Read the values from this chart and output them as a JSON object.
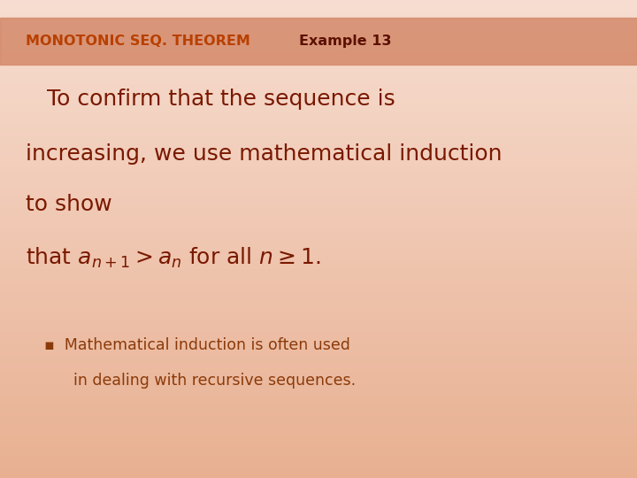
{
  "bg_color_top": "#f7ddd0",
  "bg_color_mid": "#f0c4a8",
  "bg_color_bot": "#e8b090",
  "header_bar_color": "#d4896a",
  "header_text_left": "MONOTONIC SEQ. THEOREM",
  "header_text_right": "Example 13",
  "header_text_color_left": "#b84000",
  "header_text_color_right": "#5c1000",
  "header_fontsize": 11.5,
  "main_text_color": "#7a1800",
  "main_line1": "   To confirm that the sequence is",
  "main_line2": "increasing, we use mathematical induction",
  "main_line3": "to show",
  "main_fontsize": 18,
  "bullet_text_color": "#8b3a0a",
  "bullet_line1": "▪  Mathematical induction is often used",
  "bullet_line2": "      in dealing with recursive sequences.",
  "bullet_fontsize": 12.5,
  "fig_width": 7.2,
  "fig_height": 5.4,
  "dpi": 100
}
